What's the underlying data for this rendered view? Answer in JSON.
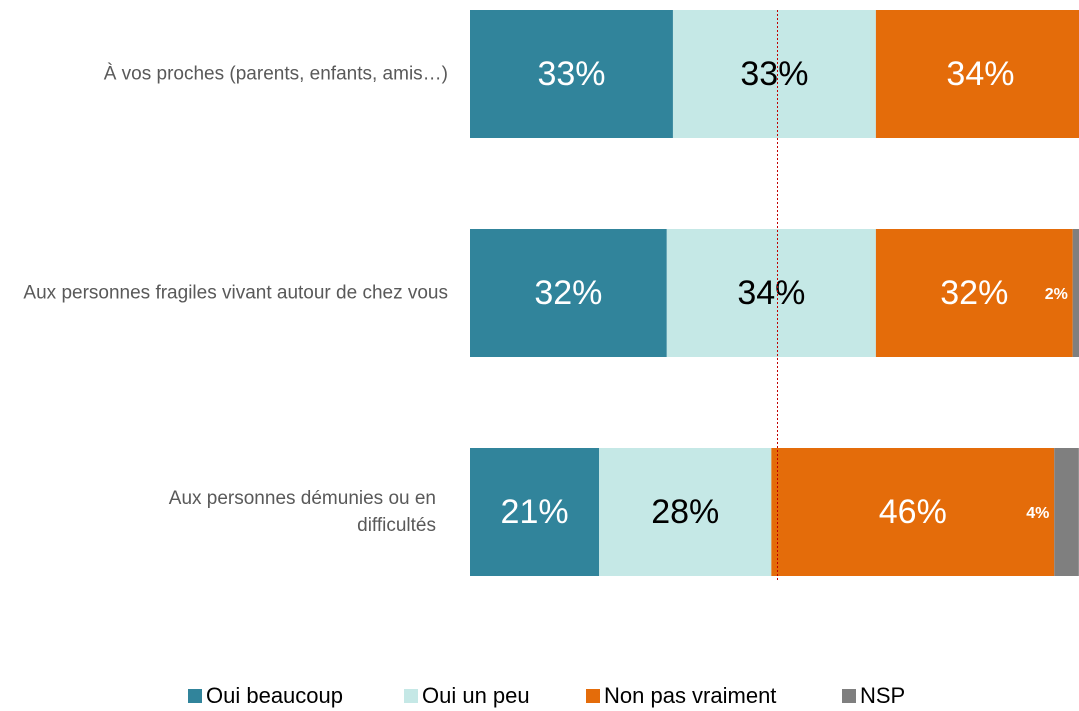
{
  "chart_data": {
    "type": "stacked-barh",
    "categories": [
      "À vos proches (parents, enfants, amis…)",
      "Aux personnes fragiles vivant autour de chez vous",
      "Aux personnes démunies ou en difficultés"
    ],
    "series": [
      {
        "name": "Oui beaucoup",
        "color": "#31849b",
        "values": [
          33,
          32,
          21
        ],
        "value_labels": [
          "33%",
          "32%",
          "21%"
        ]
      },
      {
        "name": "Oui un peu",
        "color": "#c5e8e6",
        "values": [
          33,
          34,
          28
        ],
        "value_labels": [
          "33%",
          "34%",
          "28%"
        ]
      },
      {
        "name": "Non pas vraiment",
        "color": "#e46c0a",
        "values": [
          34,
          32,
          46
        ],
        "value_labels": [
          "34%",
          "32%",
          "46%"
        ]
      },
      {
        "name": "NSP",
        "color": "#7f7f7f",
        "values": [
          0,
          2,
          4
        ],
        "value_labels": [
          null,
          "2%",
          "4%"
        ]
      }
    ],
    "xlim": [
      0,
      100
    ],
    "reference_line": 50,
    "legend": "bottom"
  }
}
